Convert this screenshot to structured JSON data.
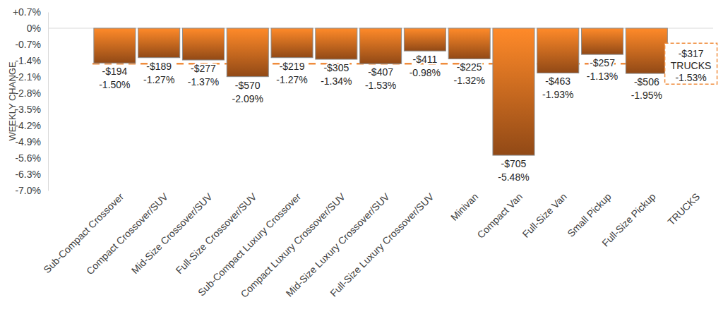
{
  "chart_data": {
    "type": "bar",
    "y_label": "WEEKLY CHANGE",
    "categories": [
      "Sub-Compact Crossover",
      "Compact Crossover/SUV",
      "Mid-Size Crossover/SUV",
      "Full-Size Crossover/SUV",
      "Sub-Compact Luxury Crossover",
      "Compact Luxury Crossover/SUV",
      "Mid-Size Luxury Crossover/SUV",
      "Full-Size Luxury Crossover/SUV",
      "Minivan",
      "Compact Van",
      "Full-Size Van",
      "Small Pickup",
      "Full-Size Pickup",
      "TRUCKS"
    ],
    "values": [
      -1.5,
      -1.27,
      -1.37,
      -2.09,
      -1.27,
      -1.34,
      -1.53,
      -0.98,
      -1.32,
      -5.48,
      -1.93,
      -1.13,
      -1.95,
      null
    ],
    "value_labels": [
      "-1.50%",
      "-1.27%",
      "-1.37%",
      "-2.09%",
      "-1.27%",
      "-1.34%",
      "-1.53%",
      "-0.98%",
      "-1.32%",
      "-5.48%",
      "-1.93%",
      "-1.13%",
      "-1.95%",
      null
    ],
    "dollar_labels": [
      "-$194",
      "-$189",
      "-$277",
      "-$570",
      "-$219",
      "-$305",
      "-$407",
      "-$411",
      "-$225",
      "-$705",
      "-$463",
      "-$257",
      "-$506",
      null
    ],
    "color": "#c8641e",
    "data_labels": true,
    "grid": false,
    "ylim": [
      -7,
      0.7
    ],
    "yticks": [
      {
        "value": 0.7,
        "label": "+0.7%"
      },
      {
        "value": 0,
        "label": "0%"
      },
      {
        "value": -0.7,
        "label": "-0.7%"
      },
      {
        "value": -1.4,
        "label": "-1.4%"
      },
      {
        "value": -2.1,
        "label": "-2.1%"
      },
      {
        "value": -2.8,
        "label": "-2.8%"
      },
      {
        "value": -3.5,
        "label": "-3.5%"
      },
      {
        "value": -4.2,
        "label": "-4.2%"
      },
      {
        "value": -4.9,
        "label": "-4.9%"
      },
      {
        "value": -5.6,
        "label": "-5.6%"
      },
      {
        "value": -6.3,
        "label": "-6.3%"
      },
      {
        "value": -7,
        "label": "-7.0%"
      }
    ],
    "reference_line": {
      "value": -1.53,
      "label": "TRUCKS",
      "value_label": "-1.53%",
      "dollar_label": "-$317",
      "color": "#f08c3c",
      "line_style": "dashed"
    }
  }
}
